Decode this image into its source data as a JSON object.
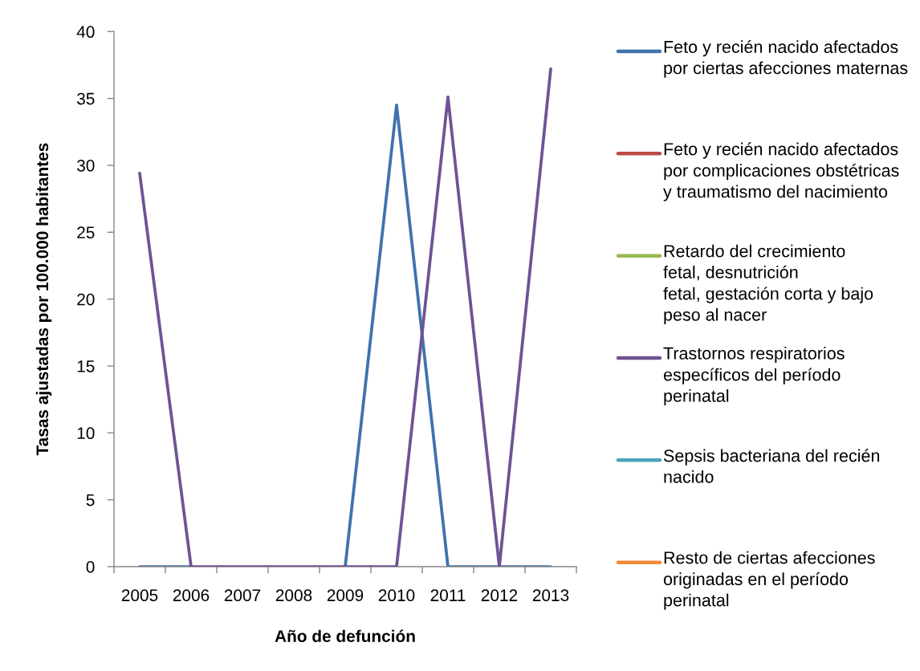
{
  "chart_data": {
    "type": "line",
    "xlabel": "Año de defunción",
    "ylabel": "Tasas ajustadas por 100.000 habitantes",
    "categories": [
      "2005",
      "2006",
      "2007",
      "2008",
      "2009",
      "2010",
      "2011",
      "2012",
      "2013"
    ],
    "series": [
      {
        "name": "Feto y recién nacido afectados\npor ciertas afecciones maternas",
        "color": "#3f72ad",
        "values": [
          0,
          0,
          null,
          null,
          0,
          34.5,
          0,
          0,
          0
        ]
      },
      {
        "name": "Feto y recién nacido afectados\npor complicaciones obstétricas\ny traumatismo del nacimiento",
        "color": "#be4b48",
        "values": [
          null,
          null,
          null,
          null,
          null,
          null,
          null,
          null,
          null
        ]
      },
      {
        "name": "Retardo del crecimiento\nfetal, desnutrición\nfetal, gestación corta y bajo\npeso al nacer",
        "color": "#98b954",
        "values": [
          null,
          null,
          null,
          null,
          null,
          null,
          null,
          null,
          null
        ]
      },
      {
        "name": "Trastornos respiratorios\nespecíficos del período\nperinatal",
        "color": "#6f5394",
        "values": [
          29.4,
          0,
          0,
          0,
          0,
          0,
          35.1,
          0,
          37.2
        ]
      },
      {
        "name": "Sepsis bacteriana del recién\nnacido",
        "color": "#4aa3bc",
        "values": [
          null,
          null,
          null,
          null,
          null,
          null,
          null,
          null,
          null
        ]
      },
      {
        "name": "Resto de ciertas afecciones\noriginadas en el período\nperinatal",
        "color": "#f0893a",
        "values": [
          null,
          null,
          null,
          null,
          null,
          null,
          null,
          null,
          null
        ]
      }
    ],
    "ylim": [
      0,
      40
    ],
    "yticks": [
      0,
      5,
      10,
      15,
      20,
      25,
      30,
      35,
      40
    ],
    "legend": "right",
    "line_style": "solid"
  }
}
